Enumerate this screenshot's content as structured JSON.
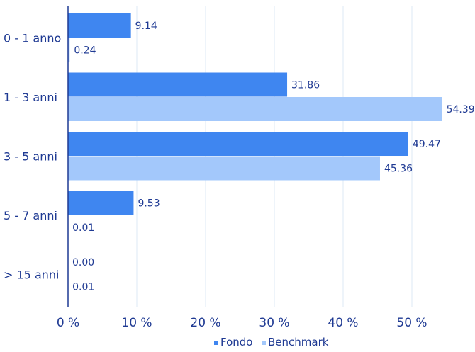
{
  "chart_data": {
    "type": "bar",
    "orientation": "horizontal",
    "categories": [
      "0 - 1 anno",
      "1 - 3 anni",
      "3 - 5 anni",
      "5 - 7 anni",
      "> 15 anni"
    ],
    "series": [
      {
        "name": "Fondo",
        "values": [
          9.14,
          31.86,
          49.47,
          9.53,
          0.0
        ],
        "labels": [
          "9.14",
          "31.86",
          "49.47",
          "9.53",
          "0.00"
        ],
        "color": "#3f86f0"
      },
      {
        "name": "Benchmark",
        "values": [
          0.24,
          54.39,
          45.36,
          0.01,
          0.01
        ],
        "labels": [
          "0.24",
          "54.39",
          "45.36",
          "0.01",
          "0.01"
        ],
        "color": "#a3c8fb"
      }
    ],
    "xlim": [
      0,
      55
    ],
    "xticks": [
      0,
      10,
      20,
      30,
      40,
      50
    ],
    "xtick_labels": [
      "0 %",
      "10 %",
      "20 %",
      "30 %",
      "40 %",
      "50 %"
    ],
    "grid": "vertical",
    "legend_position": "bottom-center",
    "colors": {
      "axis": "#1f3a93",
      "grid": "#dde8f5",
      "text": "#1f3a93"
    }
  }
}
